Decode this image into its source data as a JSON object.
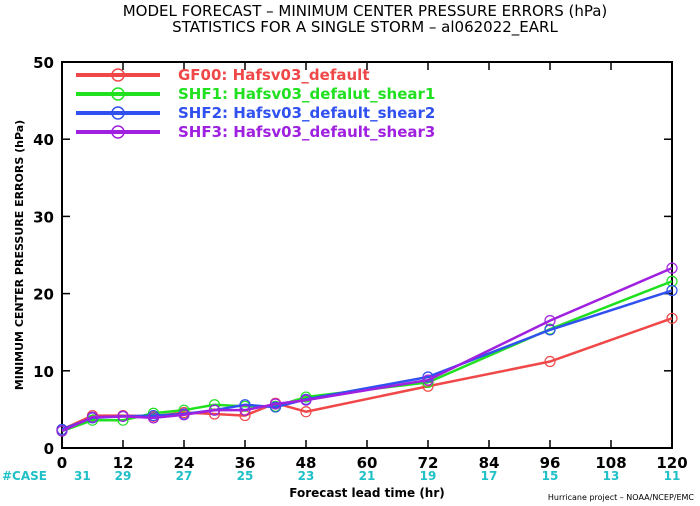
{
  "chart_data": {
    "type": "line",
    "title_line1": "MODEL FORECAST – MINIMUM CENTER PRESSURE ERRORS (hPa)",
    "title_line2": "STATISTICS FOR A SINGLE STORM – al062022_EARL",
    "ylabel": "MINIMUM CENTER PRESSURE ERRORS (hPa)",
    "xlabel": "Forecast lead time (hr)",
    "xlim": [
      0,
      120
    ],
    "ylim": [
      0,
      50
    ],
    "xticks": [
      0,
      12,
      24,
      36,
      48,
      60,
      72,
      84,
      96,
      108,
      120
    ],
    "yticks": [
      0,
      10,
      20,
      30,
      40,
      50
    ],
    "case_label": "#CASE",
    "case_x": [
      0,
      12,
      24,
      36,
      48,
      60,
      72,
      84,
      96,
      108,
      120
    ],
    "case_counts": [
      "31",
      "29",
      "27",
      "25",
      "23",
      "21",
      "19",
      "17",
      "15",
      "13",
      "11"
    ],
    "credit": "Hurricane project – NOAA/NCEP/EMC",
    "legend_position": "top-left",
    "grid": false,
    "series": [
      {
        "name": "GF00: Hafsv03_default",
        "color": "#f04848",
        "x": [
          0,
          6,
          12,
          18,
          24,
          30,
          36,
          42,
          48,
          72,
          96,
          120
        ],
        "y": [
          2.4,
          4.2,
          4.2,
          4.1,
          4.6,
          4.4,
          4.2,
          5.8,
          4.7,
          8.0,
          11.2,
          16.8
        ]
      },
      {
        "name": "SHF1: Hafsv03_defalut_shear1",
        "color": "#20e020",
        "x": [
          0,
          6,
          12,
          18,
          24,
          30,
          36,
          42,
          48,
          72,
          96,
          120
        ],
        "y": [
          2.2,
          3.6,
          3.6,
          4.5,
          4.9,
          5.6,
          5.4,
          5.4,
          6.6,
          8.5,
          15.4,
          21.6
        ]
      },
      {
        "name": "SHF2: Hafsv03_default_shear2",
        "color": "#3050f0",
        "x": [
          0,
          6,
          12,
          18,
          24,
          30,
          36,
          42,
          48,
          72,
          96,
          120
        ],
        "y": [
          2.4,
          3.9,
          4.1,
          4.2,
          4.4,
          4.9,
          5.6,
          5.3,
          6.3,
          9.2,
          15.3,
          20.4
        ]
      },
      {
        "name": "SHF3: Hafsv03_default_shear3",
        "color": "#a020e0",
        "x": [
          0,
          6,
          12,
          18,
          24,
          30,
          36,
          42,
          48,
          72,
          96,
          120
        ],
        "y": [
          2.2,
          4.0,
          4.1,
          3.9,
          4.3,
          4.9,
          4.9,
          5.7,
          6.2,
          8.8,
          16.5,
          23.3
        ]
      }
    ]
  }
}
